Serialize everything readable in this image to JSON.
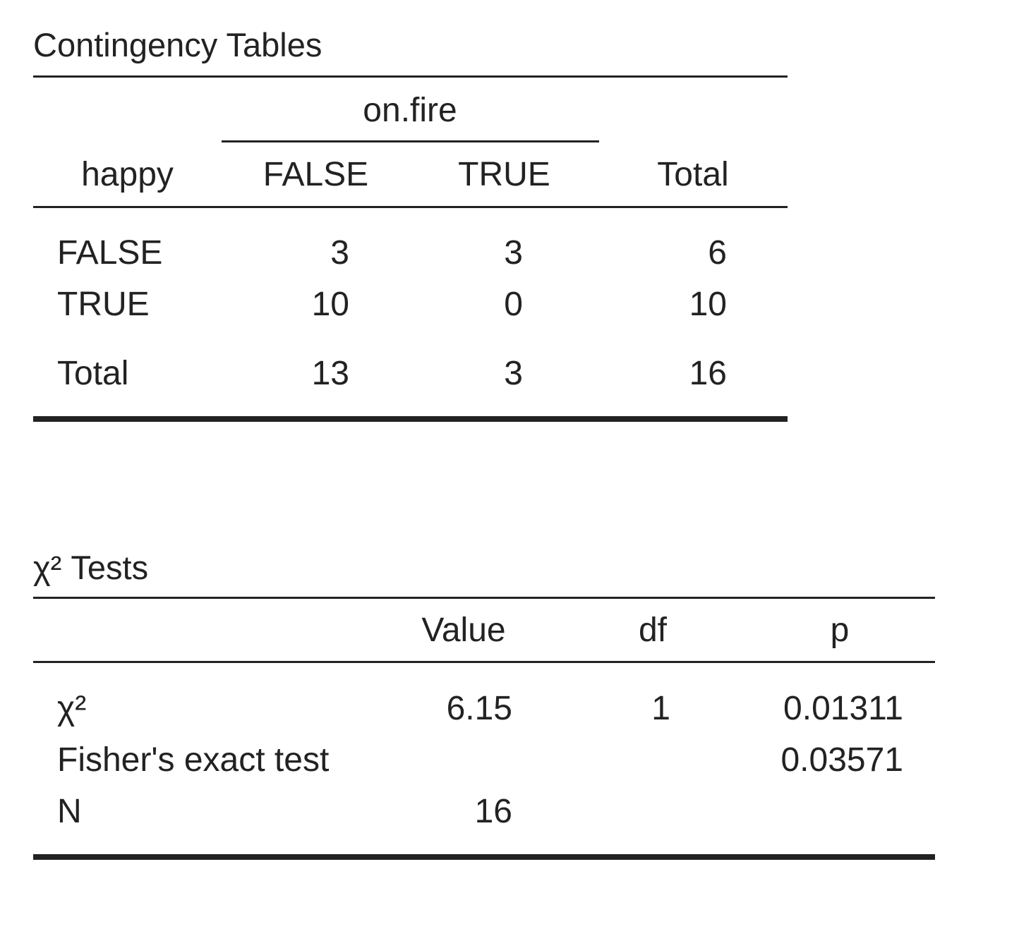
{
  "contingency": {
    "title": "Contingency Tables",
    "col_group": "on.fire",
    "row_var": "happy",
    "columns": [
      "FALSE",
      "TRUE",
      "Total"
    ],
    "rows": [
      {
        "label": "FALSE",
        "values": [
          "3",
          "3",
          "6"
        ]
      },
      {
        "label": "TRUE",
        "values": [
          "10",
          "0",
          "10"
        ]
      },
      {
        "label": "Total",
        "values": [
          "13",
          "3",
          "16"
        ]
      }
    ]
  },
  "tests": {
    "title": "χ² Tests",
    "columns": [
      "Value",
      "df",
      "p"
    ],
    "rows": [
      {
        "label": "χ²",
        "value": "6.15",
        "df": "1",
        "p": "0.01311"
      },
      {
        "label": "Fisher's exact test",
        "value": "",
        "df": "",
        "p": "0.03571"
      },
      {
        "label": "N",
        "value": "16",
        "df": "",
        "p": ""
      }
    ]
  }
}
